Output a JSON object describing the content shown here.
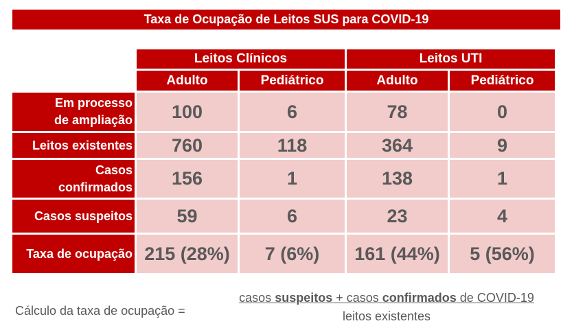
{
  "title": "Taxa de Ocupação de Leitos SUS para COVID-19",
  "groups": [
    "Leitos Clínicos",
    "Leitos UTI"
  ],
  "subheaders": [
    "Adulto",
    "Pediátrico",
    "Adulto",
    "Pediátrico"
  ],
  "rows": [
    {
      "label": "Em processo\nde ampliação",
      "values": [
        "100",
        "6",
        "78",
        "0"
      ]
    },
    {
      "label": "Leitos existentes",
      "values": [
        "760",
        "118",
        "364",
        "9"
      ]
    },
    {
      "label": "Casos\nconfirmados",
      "values": [
        "156",
        "1",
        "138",
        "1"
      ]
    },
    {
      "label": "Casos suspeitos",
      "values": [
        "59",
        "6",
        "23",
        "4"
      ]
    },
    {
      "label": "Taxa de ocupação",
      "values": [
        "215 (28%)",
        "7 (6%)",
        "161 (44%)",
        "5 (56%)"
      ]
    }
  ],
  "formula": {
    "label": "Cálculo da taxa de ocupação =",
    "numerator": {
      "part1": "casos ",
      "part2": "suspeitos",
      "part3": " + casos ",
      "part4": "confirmados",
      "part5": " de COVID-19"
    },
    "denominator": "leitos existentes"
  },
  "colors": {
    "header_red": "#c00000",
    "cell_pink": "#f2cbcb",
    "value_gray": "#595959"
  }
}
